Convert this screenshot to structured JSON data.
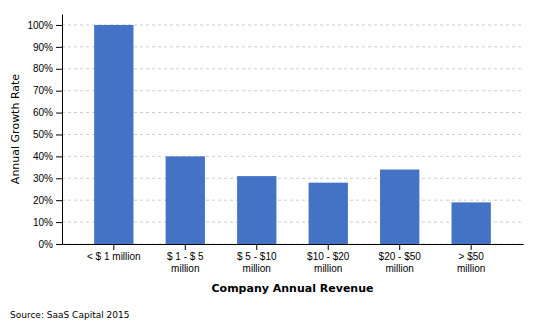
{
  "chart_data": {
    "type": "bar",
    "categories": [
      "< $ 1 million",
      "$ 1 - $ 5\nmillion",
      "$ 5 - $10\nmillion",
      "$10 - $20\nmillion",
      "$20 - $50\nmillion",
      "> $50\nmillion"
    ],
    "values": [
      1.0,
      0.4,
      0.31,
      0.28,
      0.34,
      0.19
    ],
    "color": "#4472C4",
    "ylabel": "Annual Growth Rate",
    "xlabel": "Company Annual Revenue",
    "ylim": [
      0,
      1.05
    ],
    "yticks": [
      {
        "value": 0,
        "label": "0%"
      },
      {
        "value": 0.1,
        "label": "10%"
      },
      {
        "value": 0.2,
        "label": "20%"
      },
      {
        "value": 0.3,
        "label": "30%"
      },
      {
        "value": 0.4,
        "label": "40%"
      },
      {
        "value": 0.5,
        "label": "50%"
      },
      {
        "value": 0.6,
        "label": "60%"
      },
      {
        "value": 0.7,
        "label": "70%"
      },
      {
        "value": 0.8,
        "label": "80%"
      },
      {
        "value": 0.9,
        "label": "90%"
      },
      {
        "value": 1.0,
        "label": "100%"
      }
    ],
    "annotations": [
      "Source: SaaS Capital 2015"
    ],
    "grid": true
  }
}
